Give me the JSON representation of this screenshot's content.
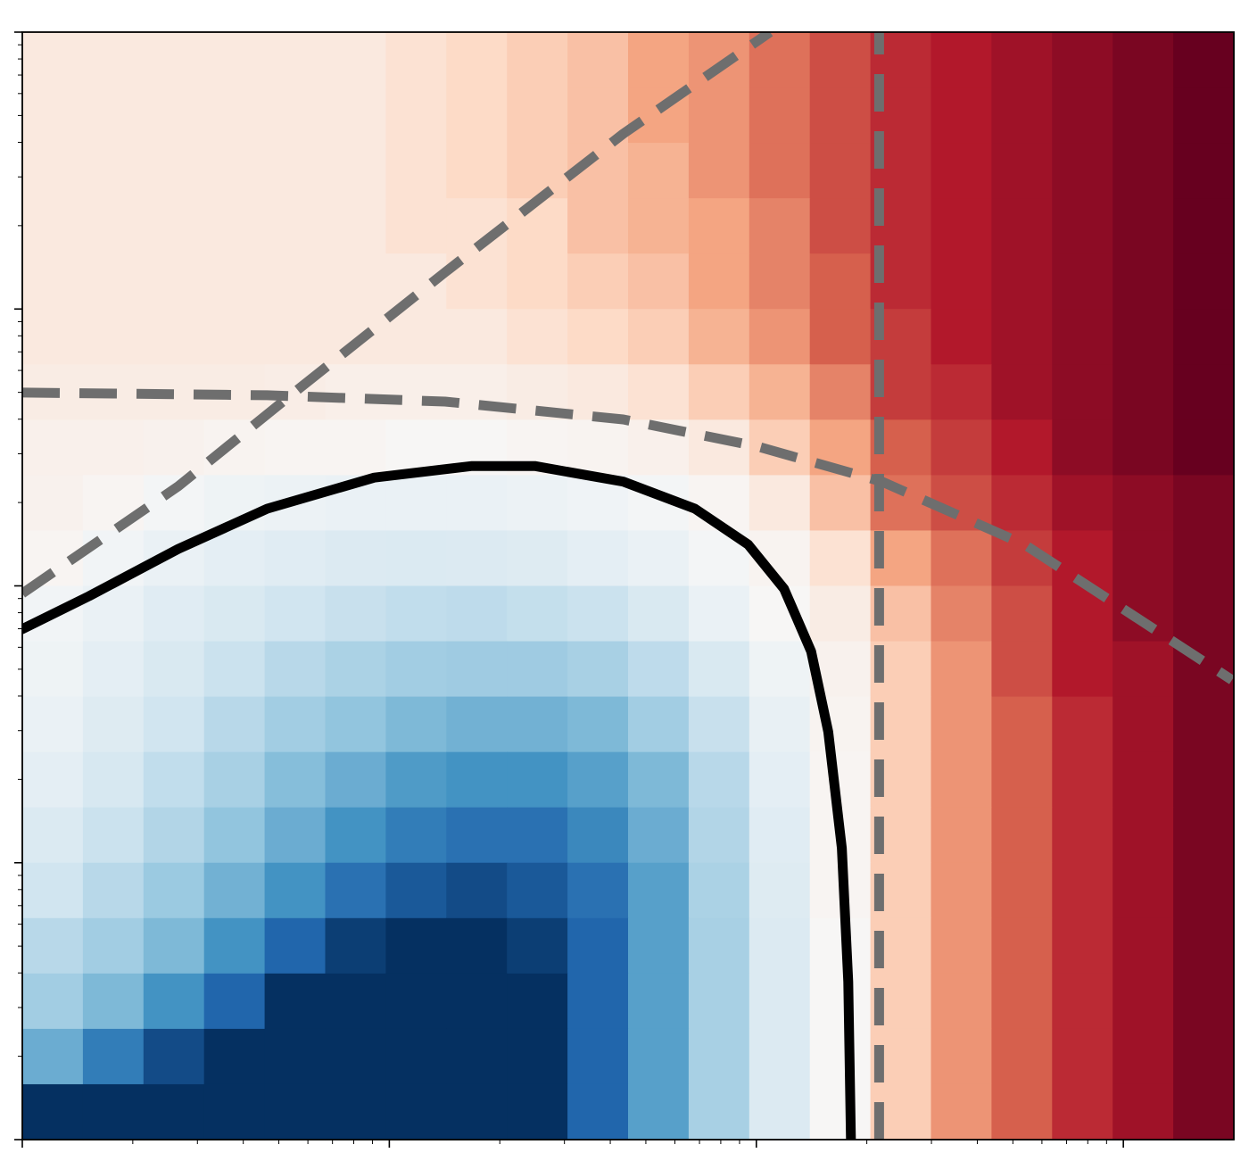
{
  "chart_data": {
    "type": "heatmap",
    "xscale": "log",
    "yscale": "log",
    "xlim": [
      1,
      2000
    ],
    "ylim": [
      1,
      10000
    ],
    "xticks": [
      1,
      10,
      100,
      1000
    ],
    "yticks": [
      1,
      10,
      100,
      1000,
      10000
    ],
    "minor_ticks": true,
    "colormap": "RdBu_r",
    "zlim": [
      -10,
      10
    ],
    "z": [
      [
        1,
        1,
        1,
        1,
        1,
        1,
        1.5,
        2,
        2.5,
        3,
        4,
        4.5,
        5.5,
        6.5,
        7.5,
        8,
        8.5,
        9,
        9.5,
        10
      ],
      [
        1,
        1,
        1,
        1,
        1,
        1,
        1.5,
        2,
        2.5,
        3,
        4,
        4.5,
        5.5,
        6.5,
        7.5,
        8,
        8.5,
        9,
        9.5,
        10
      ],
      [
        1,
        1,
        1,
        1,
        1,
        1,
        1.5,
        2,
        2.5,
        3,
        3.5,
        4.5,
        5.5,
        6.5,
        7.5,
        8,
        8.5,
        9,
        9.5,
        10
      ],
      [
        1,
        1,
        1,
        1,
        1,
        1,
        1.5,
        1.5,
        2,
        3,
        3.5,
        4,
        5,
        6.5,
        7.5,
        8,
        8.5,
        9,
        9.5,
        10
      ],
      [
        1,
        1,
        1,
        1,
        1,
        1,
        1,
        1.5,
        2,
        2.5,
        3,
        4,
        5,
        6,
        7.5,
        8,
        8.5,
        9,
        9.5,
        10
      ],
      [
        1,
        1,
        1,
        1,
        1,
        1,
        1,
        1,
        1.5,
        2,
        2.5,
        3.5,
        4.5,
        6,
        7,
        8,
        8.5,
        9,
        9.5,
        10
      ],
      [
        0.8,
        0.8,
        0.8,
        0.8,
        0.7,
        0.6,
        0.6,
        0.6,
        0.8,
        1,
        1.5,
        2.5,
        3.5,
        5,
        7,
        7.5,
        8.5,
        9,
        9.5,
        10
      ],
      [
        0.5,
        0.5,
        0.4,
        0.3,
        0.2,
        0.2,
        0.1,
        0.1,
        0.2,
        0.3,
        0.5,
        1,
        2.5,
        4,
        6,
        7,
        8,
        9,
        9.5,
        10
      ],
      [
        0.4,
        0.2,
        -0.2,
        -0.5,
        -0.6,
        -0.7,
        -0.7,
        -0.7,
        -0.6,
        -0.4,
        -0.2,
        0.2,
        1,
        3,
        5.5,
        6.5,
        7.5,
        8.5,
        9,
        9.5
      ],
      [
        0.2,
        -0.3,
        -0.7,
        -1,
        -1.2,
        -1.4,
        -1.5,
        -1.4,
        -1.3,
        -1,
        -0.7,
        -0.2,
        0.3,
        1.5,
        4,
        5.5,
        7,
        8,
        9,
        9.5
      ],
      [
        -0.3,
        -0.7,
        -1.2,
        -1.6,
        -2,
        -2.3,
        -2.5,
        -2.6,
        -2.4,
        -2.2,
        -1.6,
        -0.7,
        0.1,
        0.8,
        3,
        5,
        6.5,
        8,
        9,
        9.5
      ],
      [
        -0.5,
        -1,
        -1.6,
        -2.2,
        -2.8,
        -3.2,
        -3.5,
        -3.6,
        -3.6,
        -3.3,
        -2.6,
        -1.6,
        -0.5,
        0.4,
        2.5,
        4.5,
        6.5,
        8,
        8.5,
        9.5
      ],
      [
        -0.7,
        -1.3,
        -2,
        -2.8,
        -3.5,
        -4,
        -4.5,
        -4.8,
        -4.8,
        -4.5,
        -3.5,
        -2.3,
        -0.8,
        0.3,
        2.5,
        4.5,
        6,
        7.5,
        8.5,
        9.5
      ],
      [
        -1,
        -1.7,
        -2.5,
        -3.3,
        -4.3,
        -5,
        -5.7,
        -6,
        -6,
        -5.5,
        -4.5,
        -2.8,
        -1,
        0.2,
        2.5,
        4.5,
        6,
        7.5,
        8.5,
        9.5
      ],
      [
        -1.5,
        -2.2,
        -3,
        -4,
        -5,
        -6,
        -7,
        -7.5,
        -7.5,
        -6.5,
        -5,
        -3,
        -1.2,
        0.2,
        2.5,
        4.5,
        6,
        7.5,
        8.5,
        9.5
      ],
      [
        -2,
        -2.8,
        -3.7,
        -4.8,
        -6,
        -7.5,
        -8.5,
        -9,
        -8.5,
        -7.5,
        -5.5,
        -3.2,
        -1.3,
        0.2,
        2.5,
        4.5,
        6,
        7.5,
        8.5,
        9.5
      ],
      [
        -2.8,
        -3.5,
        -4.5,
        -6,
        -8,
        -9.5,
        -10,
        -10,
        -9.5,
        -8,
        -5.5,
        -3.3,
        -1.4,
        0.1,
        2.5,
        4.5,
        6,
        7.5,
        8.5,
        9.5
      ],
      [
        -3.5,
        -4.5,
        -6,
        -8,
        -10,
        -10,
        -10,
        -10,
        -10,
        -8,
        -5.5,
        -3.3,
        -1.4,
        0.1,
        2.5,
        4.5,
        6,
        7.5,
        8.5,
        9.5
      ],
      [
        -5,
        -7,
        -9,
        -10,
        -10,
        -10,
        -10,
        -10,
        -10,
        -8,
        -5.5,
        -3.3,
        -1.4,
        0.1,
        2.5,
        4.5,
        6,
        7.5,
        8.5,
        9.5
      ],
      [
        -10,
        -10,
        -10,
        -10,
        -10,
        -10,
        -10,
        -10,
        -10,
        -8,
        -5.5,
        -3.3,
        -1.4,
        0.1,
        2.5,
        4.5,
        6,
        7.5,
        8.5,
        9.5
      ]
    ],
    "series": [
      {
        "color": "#6e6e6e",
        "style": "dashed",
        "x": [
          1,
          2.66,
          5.5,
          14.2,
          43.4,
          109
        ],
        "values": [
          93.9,
          229,
          499,
          1358,
          4295,
          10000
        ]
      },
      {
        "color": "#6e6e6e",
        "style": "dashed",
        "x": [
          1,
          4.65,
          14.2,
          43.4,
          100.5,
          220,
          538,
          1977
        ],
        "values": [
          499,
          488,
          463,
          399,
          319,
          238,
          141,
          45.7
        ]
      },
      {
        "color": "#6e6e6e",
        "style": "dashed",
        "x": [
          216,
          216
        ],
        "values": [
          1,
          10000
        ]
      },
      {
        "color": "#000000",
        "style": "solid",
        "x": [
          1,
          1.52,
          2.66,
          4.65,
          9.1,
          16.8,
          24.9,
          43.4,
          68,
          95,
          119,
          141,
          157,
          171,
          178,
          181
        ],
        "values": [
          69.8,
          91.8,
          136,
          190,
          246,
          271,
          271,
          238,
          190,
          141,
          97.5,
          58,
          29.7,
          11.3,
          3.72,
          1
        ]
      }
    ]
  }
}
